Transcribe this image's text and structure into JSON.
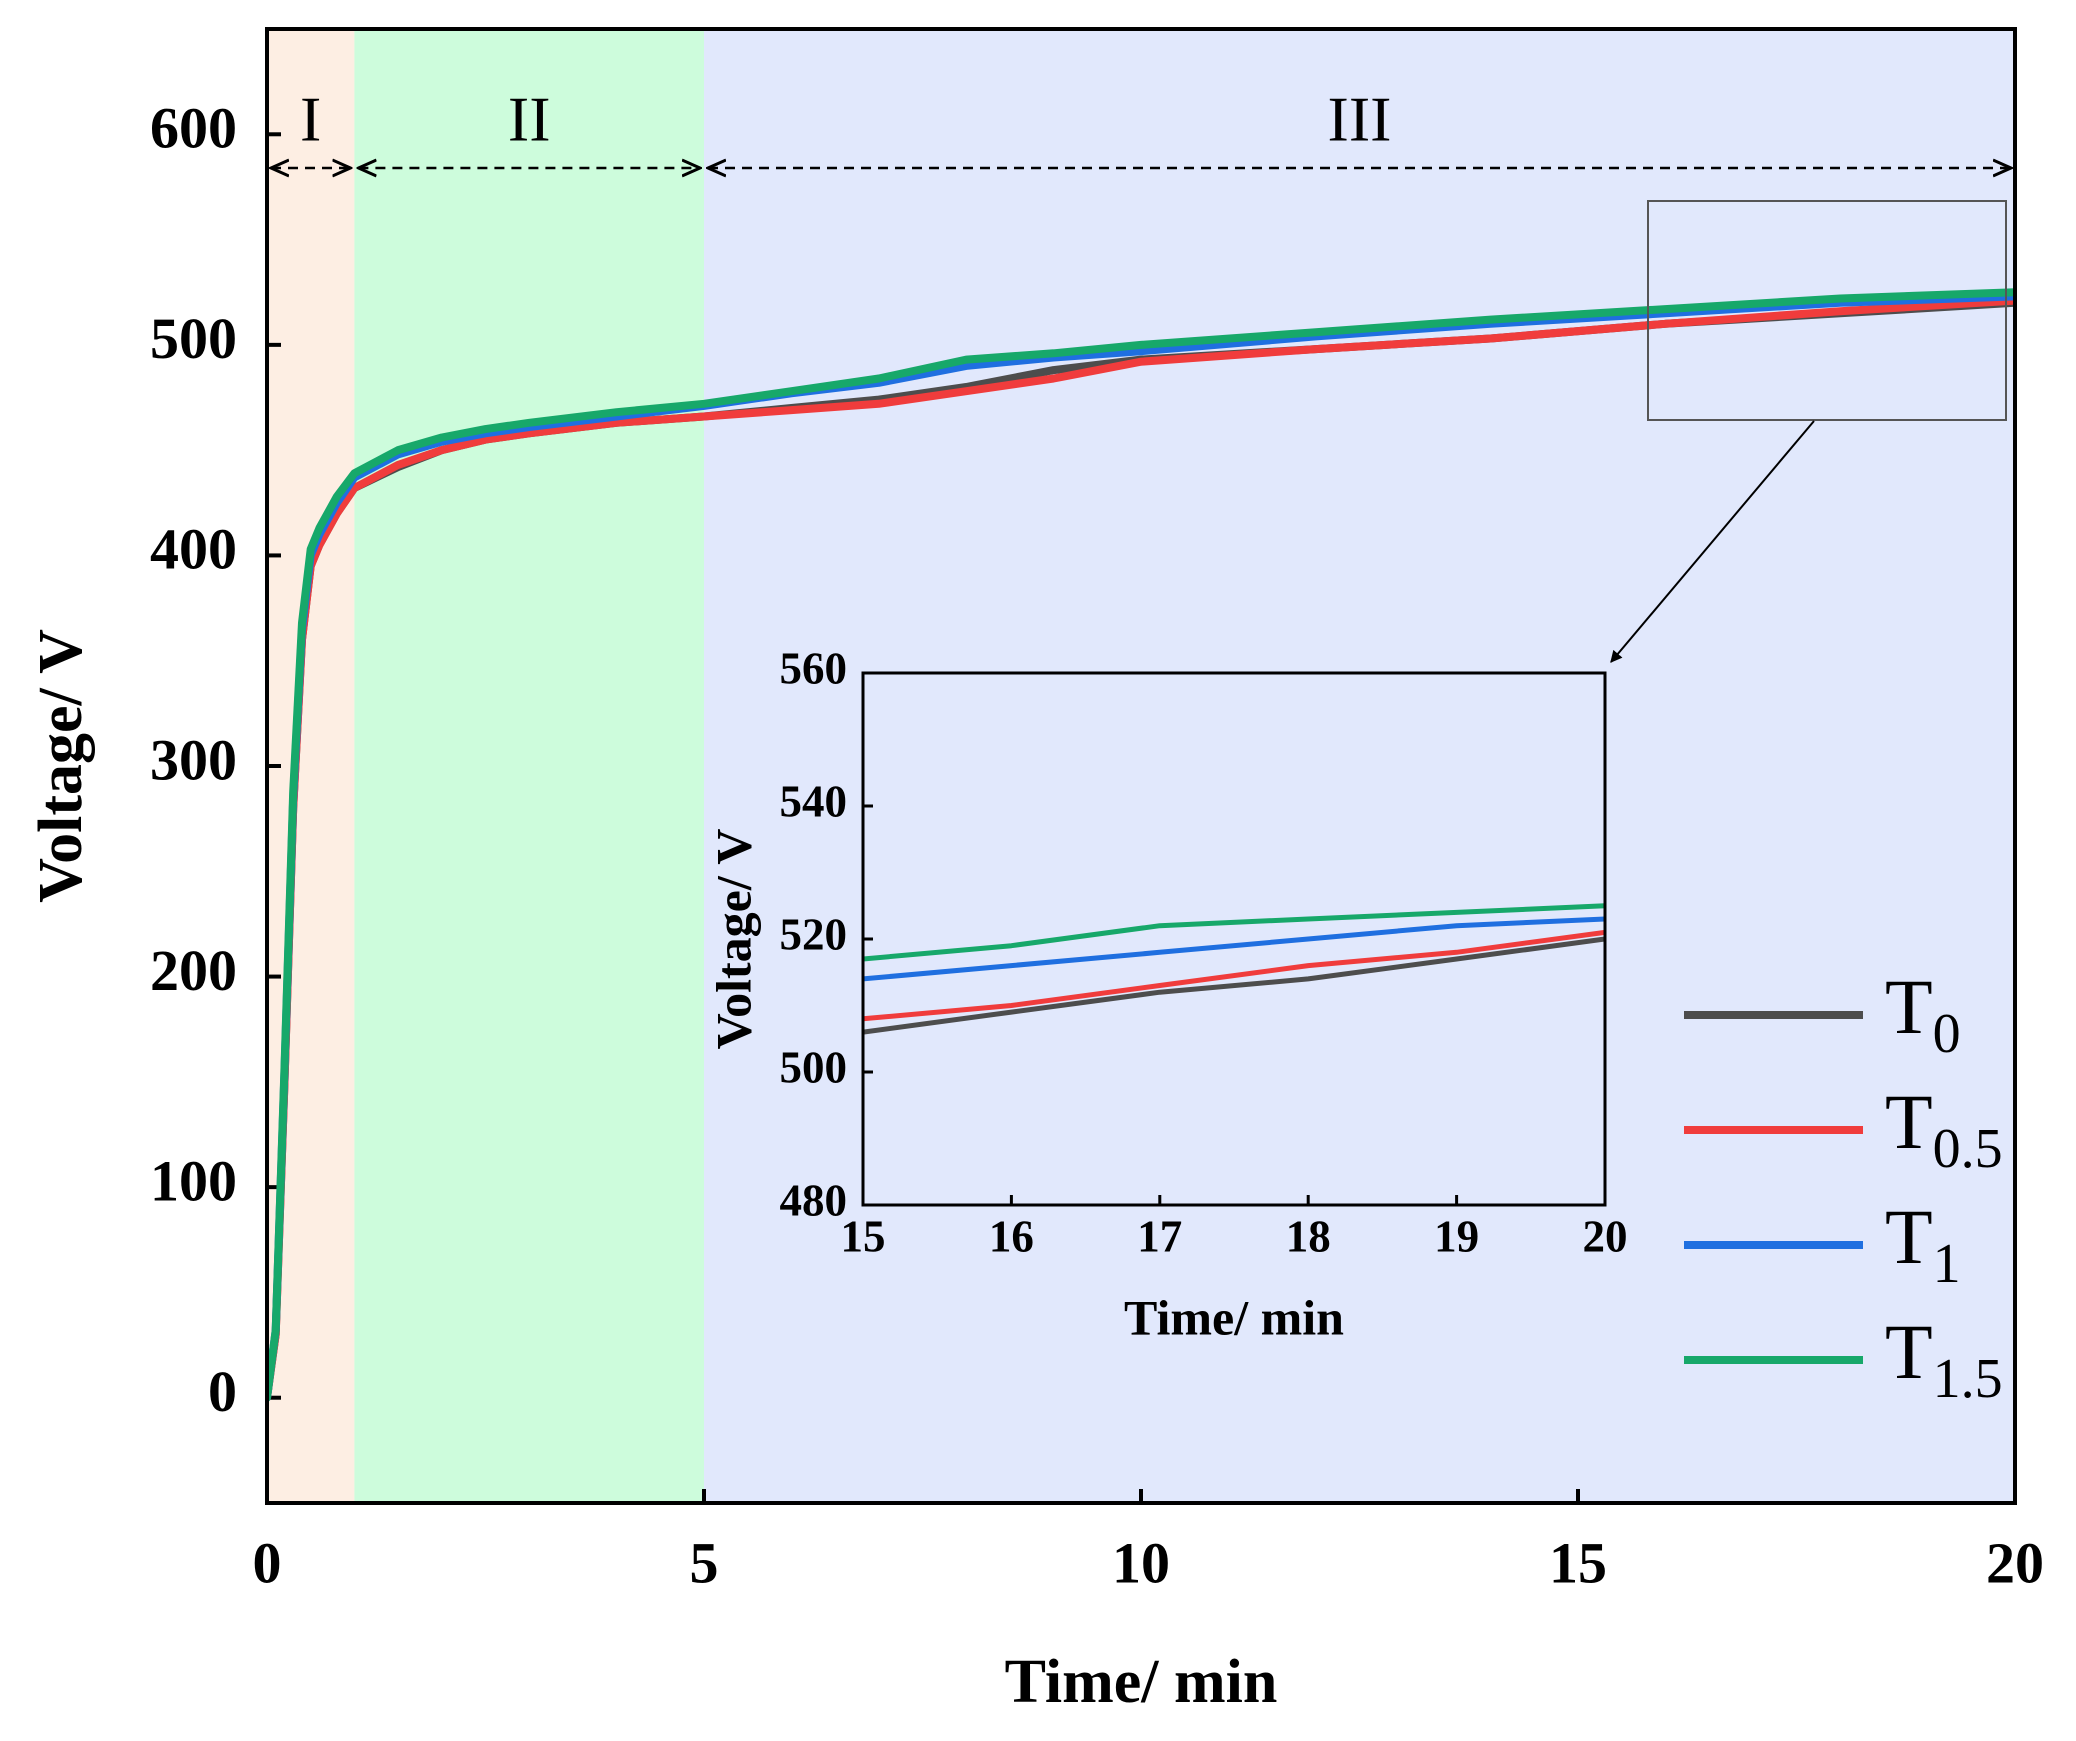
{
  "chart_data": [
    {
      "type": "line",
      "xlabel": "Time/ min",
      "ylabel": "Voltage/ V",
      "xlim": [
        0,
        20
      ],
      "ylim": [
        -50,
        650
      ],
      "xticks": [
        0,
        5,
        10,
        15,
        20
      ],
      "yticks": [
        0,
        100,
        200,
        300,
        400,
        500,
        600
      ],
      "regions": [
        {
          "label": "I",
          "span": [
            0,
            1
          ],
          "color": "#fdeee3"
        },
        {
          "label": "II",
          "span": [
            1,
            5
          ],
          "color": "#cdfcdc"
        },
        {
          "label": "III",
          "span": [
            5,
            20
          ],
          "color": "#e1e8fc"
        }
      ],
      "x": [
        0,
        0.1,
        0.2,
        0.3,
        0.4,
        0.5,
        0.6,
        0.8,
        1,
        1.5,
        2,
        2.5,
        3,
        4,
        5,
        6,
        7,
        8,
        9,
        10,
        12,
        14,
        16,
        18,
        20
      ],
      "series": [
        {
          "name": "T0",
          "color": "#4d4d4d",
          "values": [
            0,
            30,
            150,
            280,
            360,
            395,
            405,
            420,
            432,
            442,
            450,
            455,
            458,
            463,
            466,
            470,
            474,
            480,
            488,
            493,
            498,
            503,
            510,
            515,
            520
          ]
        },
        {
          "name": "T0.5",
          "color": "#f03c3c",
          "values": [
            0,
            30,
            150,
            280,
            360,
            395,
            405,
            420,
            432,
            443,
            450,
            455,
            458,
            463,
            466,
            469,
            472,
            478,
            484,
            492,
            498,
            503,
            510,
            516,
            521
          ]
        },
        {
          "name": "T1",
          "color": "#1f6fe0",
          "values": [
            0,
            32,
            155,
            285,
            365,
            400,
            410,
            425,
            437,
            448,
            454,
            458,
            461,
            466,
            471,
            477,
            482,
            490,
            494,
            497,
            504,
            510,
            515,
            520,
            523
          ]
        },
        {
          "name": "T1.5",
          "color": "#17a86a",
          "values": [
            0,
            32,
            157,
            288,
            368,
            403,
            413,
            428,
            439,
            450,
            456,
            460,
            463,
            468,
            472,
            478,
            484,
            493,
            496,
            500,
            506,
            512,
            517,
            522,
            525
          ]
        }
      ]
    },
    {
      "type": "line",
      "xlabel": "Time/ min",
      "ylabel": "Voltage/ V",
      "xlim": [
        15,
        20
      ],
      "ylim": [
        480,
        560
      ],
      "xticks": [
        15,
        16,
        17,
        18,
        19,
        20
      ],
      "yticks": [
        480,
        500,
        520,
        540,
        560
      ],
      "x": [
        15,
        16,
        17,
        18,
        19,
        20
      ],
      "series": [
        {
          "color": "#4d4d4d",
          "values": [
            506,
            509,
            512,
            514,
            517,
            520
          ]
        },
        {
          "color": "#f03c3c",
          "values": [
            508,
            510,
            513,
            516,
            518,
            521
          ]
        },
        {
          "color": "#1f6fe0",
          "values": [
            514,
            516,
            518,
            520,
            522,
            523
          ]
        },
        {
          "color": "#17a86a",
          "values": [
            517,
            519,
            522,
            523,
            524,
            525
          ]
        }
      ]
    }
  ]
}
